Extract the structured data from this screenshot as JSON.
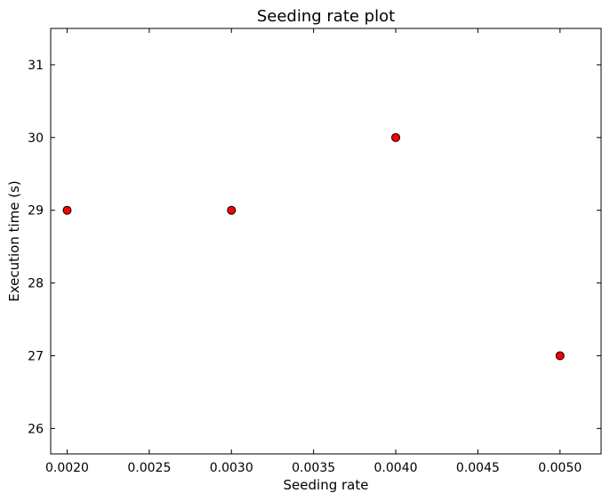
{
  "chart_data": {
    "type": "scatter",
    "title": "Seeding rate plot",
    "xlabel": "Seeding rate",
    "ylabel": "Execution time (s)",
    "xlim": [
      0.0019,
      0.00525
    ],
    "ylim": [
      25.65,
      31.5
    ],
    "xticks": [
      "0.0020",
      "0.0025",
      "0.0030",
      "0.0035",
      "0.0040",
      "0.0045",
      "0.0050"
    ],
    "yticks": [
      "26",
      "27",
      "28",
      "29",
      "30",
      "31"
    ],
    "grid": false,
    "series": [
      {
        "marker_color": "#ff0000",
        "marker_edge": "#000000",
        "x": [
          0.002,
          0.003,
          0.004,
          0.005
        ],
        "y": [
          29,
          29,
          30,
          27
        ]
      }
    ]
  }
}
